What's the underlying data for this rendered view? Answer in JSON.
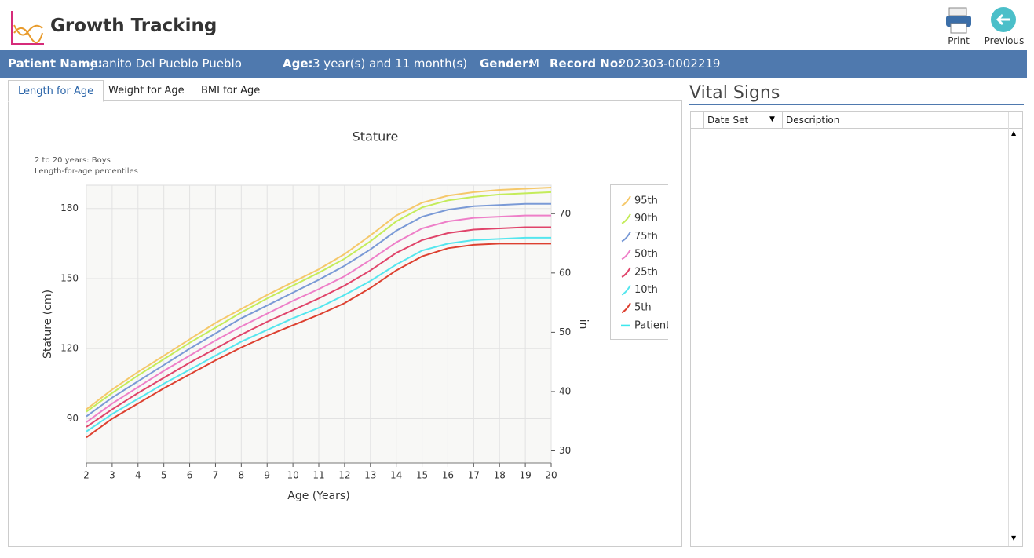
{
  "header": {
    "title": "Growth Tracking",
    "buttons": [
      "Print",
      "Previous"
    ]
  },
  "patient": {
    "name_label": "Patient Name:",
    "name": "Juanito Del Pueblo Pueblo",
    "age_label": "Age:",
    "age": "3 year(s) and 11 month(s)",
    "gender_label": "Gender:",
    "gender": "M",
    "record_label": "Record No:",
    "record": "202303-0002219"
  },
  "tabs": [
    "Length for Age",
    "Weight for Age",
    "BMI for Age"
  ],
  "vital_signs": {
    "title": "Vital Signs",
    "columns": [
      "Date Set",
      "Description"
    ]
  },
  "chart_data": {
    "type": "line",
    "title": "Stature",
    "subtitle": [
      "2 to 20 years: Boys",
      "Length-for-age percentiles"
    ],
    "xlabel": "Age (Years)",
    "ylabel": "Stature (cm)",
    "y2label": "in",
    "x": [
      2,
      3,
      4,
      5,
      6,
      7,
      8,
      9,
      10,
      11,
      12,
      13,
      14,
      15,
      16,
      17,
      18,
      19,
      20
    ],
    "xlim": [
      2,
      20
    ],
    "xticks": [
      2,
      3,
      4,
      5,
      6,
      7,
      8,
      9,
      10,
      11,
      12,
      13,
      14,
      15,
      16,
      17,
      18,
      19,
      20
    ],
    "ylim": [
      71,
      190
    ],
    "yticks": [
      90,
      120,
      150,
      180
    ],
    "y2lim": [
      27.95,
      74.8
    ],
    "y2ticks": [
      30,
      40,
      50,
      60,
      70
    ],
    "grid": true,
    "legend": "right",
    "series": [
      {
        "name": "95th",
        "color": "#f5c86a",
        "values": [
          94,
          102.5,
          110,
          117,
          124,
          131,
          137,
          143,
          148.5,
          154,
          160.5,
          168.5,
          177,
          182.5,
          185.5,
          187,
          188,
          188.5,
          189
        ]
      },
      {
        "name": "90th",
        "color": "#c4ec5a",
        "values": [
          93,
          101,
          108.5,
          115.5,
          122.5,
          129,
          135.5,
          141.5,
          147,
          152.5,
          158.5,
          166,
          174.5,
          180.5,
          183.5,
          185,
          186,
          186.5,
          187
        ]
      },
      {
        "name": "75th",
        "color": "#7a9ad6",
        "values": [
          91,
          99,
          106,
          113,
          120,
          126.5,
          133,
          138.5,
          144,
          149.5,
          155.5,
          162.5,
          170.5,
          176.5,
          179.5,
          181,
          181.5,
          182,
          182
        ]
      },
      {
        "name": "50th",
        "color": "#ee7fc8",
        "values": [
          88.5,
          96.5,
          103.5,
          110.5,
          117,
          123.5,
          129.5,
          135,
          140.5,
          145.5,
          151,
          158,
          165.5,
          171.5,
          174.5,
          176,
          176.5,
          177,
          177
        ]
      },
      {
        "name": "25th",
        "color": "#e0446a",
        "values": [
          86.5,
          94,
          101,
          107.5,
          114,
          120,
          126,
          131.5,
          136.5,
          141.5,
          147,
          153.5,
          161,
          166.5,
          169.5,
          171,
          171.5,
          172,
          172
        ]
      },
      {
        "name": "10th",
        "color": "#55e6ee",
        "values": [
          84.5,
          92,
          98.5,
          105,
          111,
          117,
          123,
          128,
          133,
          137.5,
          143,
          149,
          156,
          162,
          165,
          166.5,
          167,
          167.5,
          167.5
        ]
      },
      {
        "name": "5th",
        "color": "#dd4030",
        "values": [
          82,
          90,
          96.5,
          103,
          109,
          115,
          120.5,
          125.5,
          130,
          134.5,
          139.5,
          146,
          153.5,
          159.5,
          163,
          164.5,
          165,
          165,
          165
        ]
      },
      {
        "name": "Patient",
        "color": "#3de8ee",
        "values": [
          null,
          null,
          null,
          null,
          null,
          null,
          null,
          null,
          null,
          null,
          null,
          null,
          null,
          null,
          null,
          null,
          null,
          null,
          null
        ]
      }
    ]
  }
}
